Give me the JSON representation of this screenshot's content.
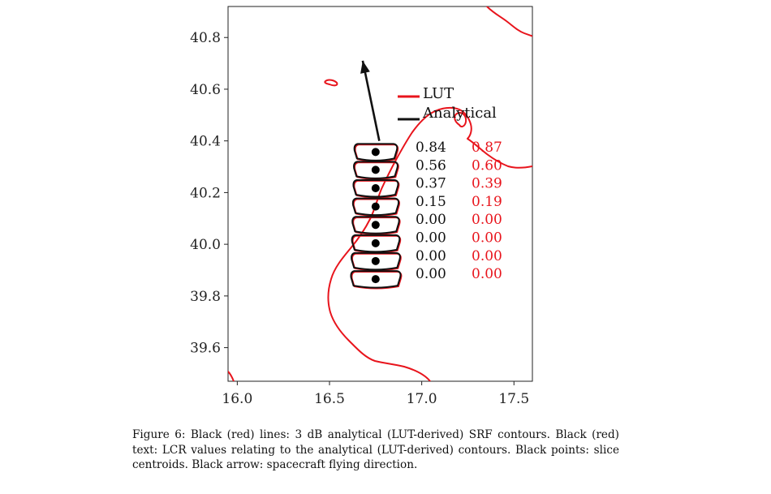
{
  "chart_data": {
    "type": "map-plot",
    "xlim": [
      15.95,
      17.6
    ],
    "ylim": [
      39.47,
      40.92
    ],
    "x_ticks": [
      "16.0",
      "16.5",
      "17.0",
      "17.5"
    ],
    "y_ticks": [
      "40.8",
      "40.6",
      "40.4",
      "40.2",
      "40.0",
      "39.8",
      "39.6"
    ],
    "legend": {
      "placement": "top-right",
      "entries": [
        {
          "label": "LUT",
          "color": "#e8141c"
        },
        {
          "label": "Analytical",
          "color": "#111111"
        }
      ]
    },
    "centroids": [
      {
        "lon": 16.75,
        "lat": 40.357
      },
      {
        "lon": 16.75,
        "lat": 40.288
      },
      {
        "lon": 16.75,
        "lat": 40.217
      },
      {
        "lon": 16.75,
        "lat": 40.146
      },
      {
        "lon": 16.75,
        "lat": 40.075
      },
      {
        "lon": 16.75,
        "lat": 40.004
      },
      {
        "lon": 16.75,
        "lat": 39.935
      },
      {
        "lon": 16.75,
        "lat": 39.865
      }
    ],
    "arrow": {
      "from": [
        16.77,
        40.4
      ],
      "to": [
        16.68,
        40.71
      ]
    },
    "lcr_analytical": [
      "0.84",
      "0.56",
      "0.37",
      "0.15",
      "0.00",
      "0.00",
      "0.00",
      "0.00"
    ],
    "lcr_lut": [
      "0.87",
      "0.60",
      "0.39",
      "0.19",
      "0.00",
      "0.00",
      "0.00",
      "0.00"
    ]
  },
  "caption": {
    "text": "Figure 6: Black (red) lines: 3 dB analytical (LUT-derived) SRF contours. Black (red) text: LCR values relating to the analytical (LUT-derived) contours. Black points: slice centroids. Black arrow: spacecraft flying direction."
  }
}
